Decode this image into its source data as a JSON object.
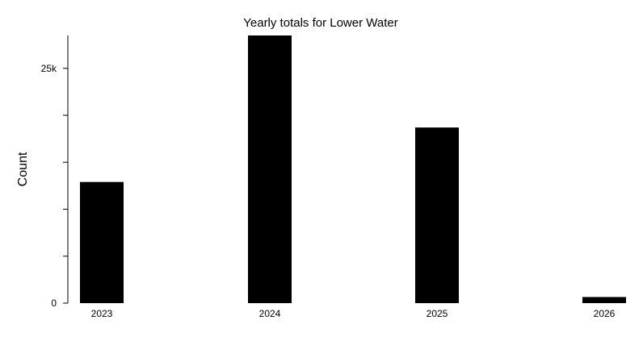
{
  "chart_data": {
    "type": "bar",
    "title": "Yearly totals for Lower Water",
    "xlabel": "",
    "ylabel": "Count",
    "categories": [
      "2023",
      "2024",
      "2025",
      "2026"
    ],
    "values": [
      12900,
      28500,
      18700,
      650
    ],
    "ylim": [
      0,
      28500
    ],
    "y_ticks": [
      0,
      5000,
      10000,
      15000,
      20000,
      25000
    ],
    "y_tick_labels": [
      "0",
      "",
      "",
      "",
      "",
      "25k"
    ],
    "grid": false,
    "bar_color": "#000000"
  }
}
